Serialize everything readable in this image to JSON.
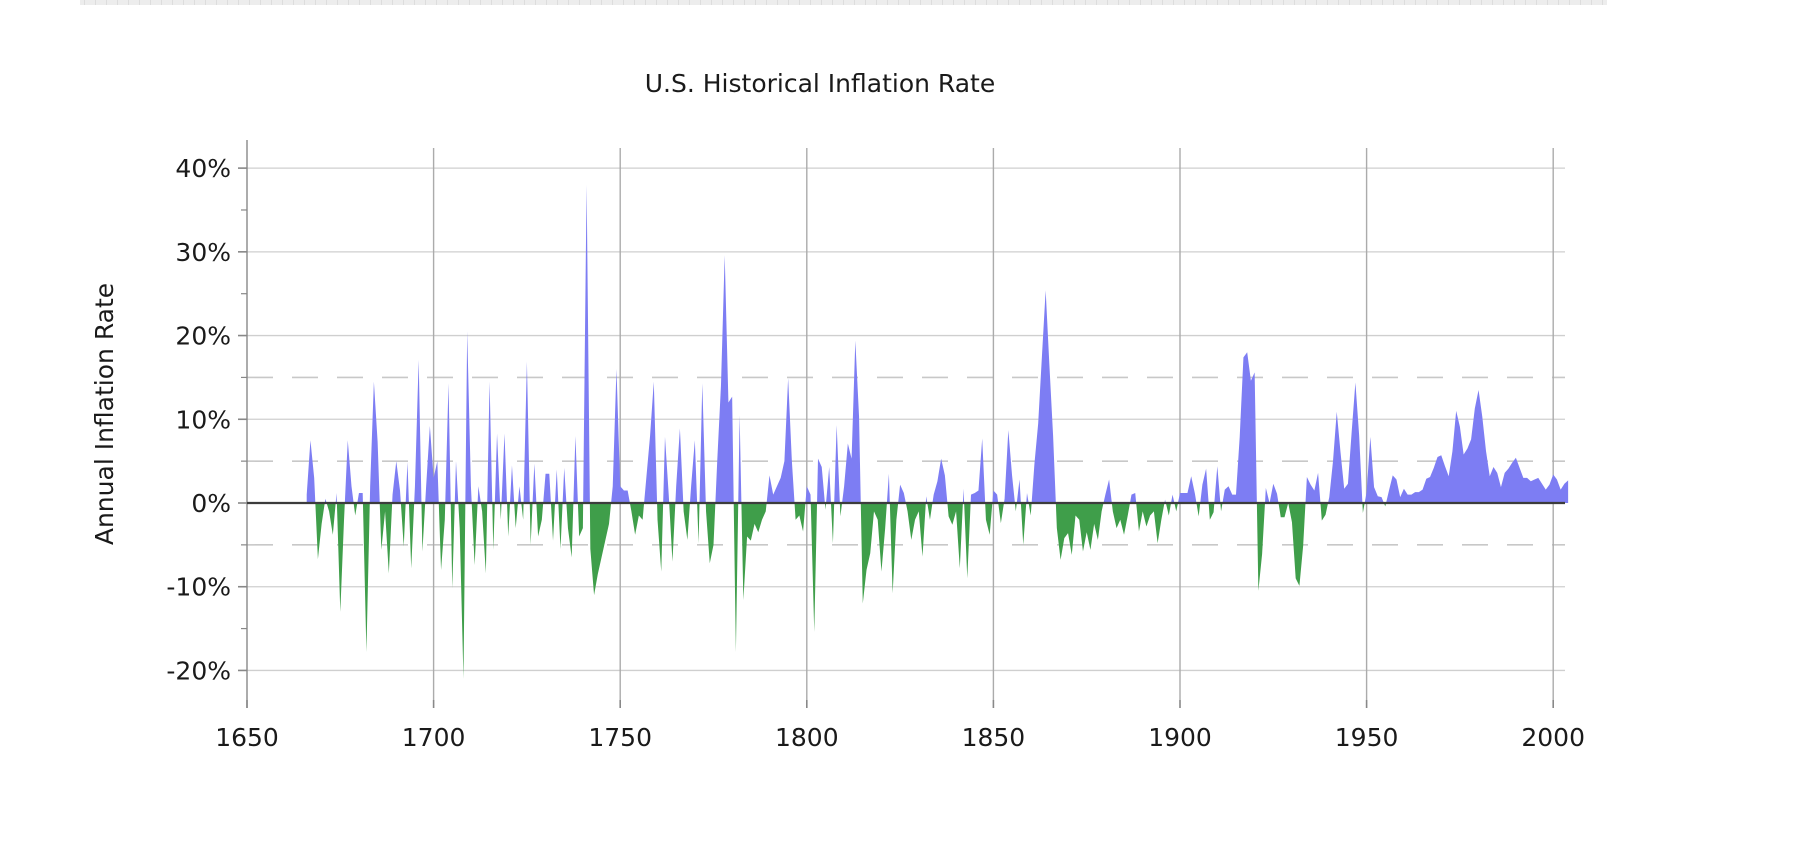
{
  "page": {
    "background": "#ffffff",
    "top_bar_color": "#ededed"
  },
  "chart_data": {
    "type": "area",
    "title": "U.S. Historical Inflation Rate",
    "xlabel": "",
    "ylabel": "Annual Inflation Rate",
    "legend": "none",
    "grid": "on",
    "x_tick_labels": [
      "1650",
      "1700",
      "1750",
      "1800",
      "1850",
      "1900",
      "1950",
      "2000"
    ],
    "x_ticks": [
      1650,
      1700,
      1750,
      1800,
      1850,
      1900,
      1950,
      2000
    ],
    "y_tick_labels": [
      "40%",
      "30%",
      "20%",
      "10%",
      "0%",
      "-10%",
      "-20%"
    ],
    "y_ticks": [
      40,
      30,
      20,
      10,
      0,
      -10,
      -20
    ],
    "y_minor_ticks": [
      35,
      25,
      15,
      5,
      -5,
      -15
    ],
    "dashed_reference_lines": [
      15,
      5,
      -5
    ],
    "xlim": [
      1650,
      2007
    ],
    "ylim": [
      -23.5,
      44.8
    ],
    "colors": {
      "positive_area": "#7d7df3",
      "negative_area": "#3f9e4a",
      "zero_line": "#3c3c3c",
      "grid_line": "#cfcfcf",
      "vertical_grid_line": "#ababab",
      "dashed_line": "#c8c8c8",
      "axis_spine": "#888888"
    },
    "series": [
      {
        "name": "annual-inflation-rate-percent",
        "start_year": 1666,
        "end_year": 2004,
        "values": [
          1.0,
          7.5,
          3.0,
          -6.7,
          -2.5,
          0.5,
          -1.0,
          -3.8,
          1.2,
          -13.0,
          -2.0,
          7.5,
          2.0,
          -1.5,
          1.2,
          1.2,
          -17.8,
          2.0,
          14.5,
          7.3,
          -5.6,
          -1.0,
          -8.4,
          1.0,
          5.0,
          1.5,
          -5.2,
          4.9,
          -7.8,
          2.0,
          17.1,
          -5.8,
          2.0,
          9.2,
          3.0,
          5.0,
          -8.0,
          -2.0,
          14.3,
          -10.2,
          5.0,
          -3.0,
          -21.0,
          20.5,
          2.0,
          -7.4,
          2.0,
          -1.0,
          -8.4,
          14.5,
          -5.6,
          8.3,
          -2.0,
          8.3,
          -4.0,
          4.5,
          -3.0,
          2.0,
          -2.0,
          16.9,
          -5.0,
          4.7,
          -4.0,
          -2.0,
          3.5,
          3.5,
          -4.5,
          4.0,
          -5.5,
          4.2,
          -3.0,
          -6.5,
          8.0,
          -4.0,
          -3.0,
          38.0,
          -5.5,
          -11.0,
          -8.5,
          -6.5,
          -4.5,
          -2.5,
          2.0,
          16.0,
          2.0,
          1.5,
          1.5,
          -1.0,
          -3.8,
          -1.5,
          -2.0,
          3.0,
          8.0,
          14.5,
          -2.0,
          -8.2,
          7.9,
          1.0,
          -7.0,
          2.0,
          8.9,
          -1.0,
          -4.4,
          2.0,
          7.5,
          -4.8,
          14.3,
          -1.0,
          -7.2,
          -5.0,
          5.0,
          14.0,
          29.6,
          12.0,
          12.7,
          -17.8,
          10.5,
          -11.6,
          -4.0,
          -4.5,
          -2.5,
          -3.5,
          -2.0,
          -1.0,
          3.3,
          1.0,
          2.0,
          3.0,
          5.0,
          14.9,
          5.0,
          -2.0,
          -1.5,
          -3.4,
          2.0,
          1.0,
          -15.4,
          5.3,
          4.3,
          -0.8,
          4.3,
          -4.8,
          9.3,
          -1.6,
          2.0,
          7.1,
          5.3,
          19.4,
          10.3,
          -12.0,
          -8.0,
          -6.0,
          -1.0,
          -2.0,
          -8.2,
          -3.0,
          3.5,
          -10.8,
          -2.0,
          2.2,
          1.2,
          -1.0,
          -4.4,
          -2.0,
          -1.0,
          -6.4,
          0.8,
          -2.0,
          1.0,
          2.6,
          5.3,
          3.3,
          -1.6,
          -2.6,
          -1.0,
          -7.8,
          1.7,
          -9.0,
          1.0,
          1.2,
          1.5,
          7.7,
          -2.0,
          -3.8,
          1.5,
          1.0,
          -2.4,
          0.5,
          8.7,
          3.3,
          -1.0,
          2.8,
          -5.0,
          1.2,
          -1.5,
          4.7,
          9.5,
          17.5,
          25.4,
          16.5,
          8.0,
          -3.0,
          -6.8,
          -4.2,
          -3.6,
          -6.2,
          -1.5,
          -2.0,
          -5.8,
          -3.5,
          -5.6,
          -2.5,
          -4.4,
          -1.0,
          1.0,
          2.8,
          -1.0,
          -3.0,
          -2.0,
          -3.8,
          -1.5,
          1.0,
          1.2,
          -3.4,
          -1.0,
          -2.8,
          -1.5,
          -1.0,
          -4.8,
          -2.0,
          0.4,
          -1.5,
          1.0,
          -1.0,
          1.2,
          1.2,
          1.2,
          3.2,
          1.1,
          -1.6,
          2.2,
          4.1,
          -2.0,
          -1.1,
          4.4,
          -1.0,
          1.6,
          2.0,
          1.0,
          1.0,
          7.9,
          17.4,
          18.0,
          14.6,
          15.6,
          -10.5,
          -6.1,
          1.8,
          0.0,
          2.3,
          1.1,
          -1.7,
          -1.7,
          0.0,
          -2.3,
          -9.0,
          -9.9,
          -5.1,
          3.1,
          2.2,
          1.5,
          3.6,
          -2.1,
          -1.4,
          0.7,
          5.0,
          10.9,
          6.1,
          1.7,
          2.3,
          8.5,
          14.4,
          8.1,
          -1.2,
          1.3,
          7.9,
          1.9,
          0.8,
          0.7,
          -0.4,
          1.5,
          3.3,
          2.8,
          0.7,
          1.7,
          1.0,
          1.0,
          1.3,
          1.3,
          1.6,
          2.9,
          3.1,
          4.2,
          5.5,
          5.7,
          4.4,
          3.2,
          6.2,
          11.0,
          9.1,
          5.8,
          6.5,
          7.6,
          11.3,
          13.5,
          10.3,
          6.2,
          3.2,
          4.3,
          3.6,
          1.9,
          3.6,
          4.1,
          4.8,
          5.4,
          4.2,
          3.0,
          3.0,
          2.6,
          2.8,
          3.0,
          2.3,
          1.6,
          2.2,
          3.4,
          2.8,
          1.6,
          2.3,
          2.7
        ]
      }
    ]
  }
}
